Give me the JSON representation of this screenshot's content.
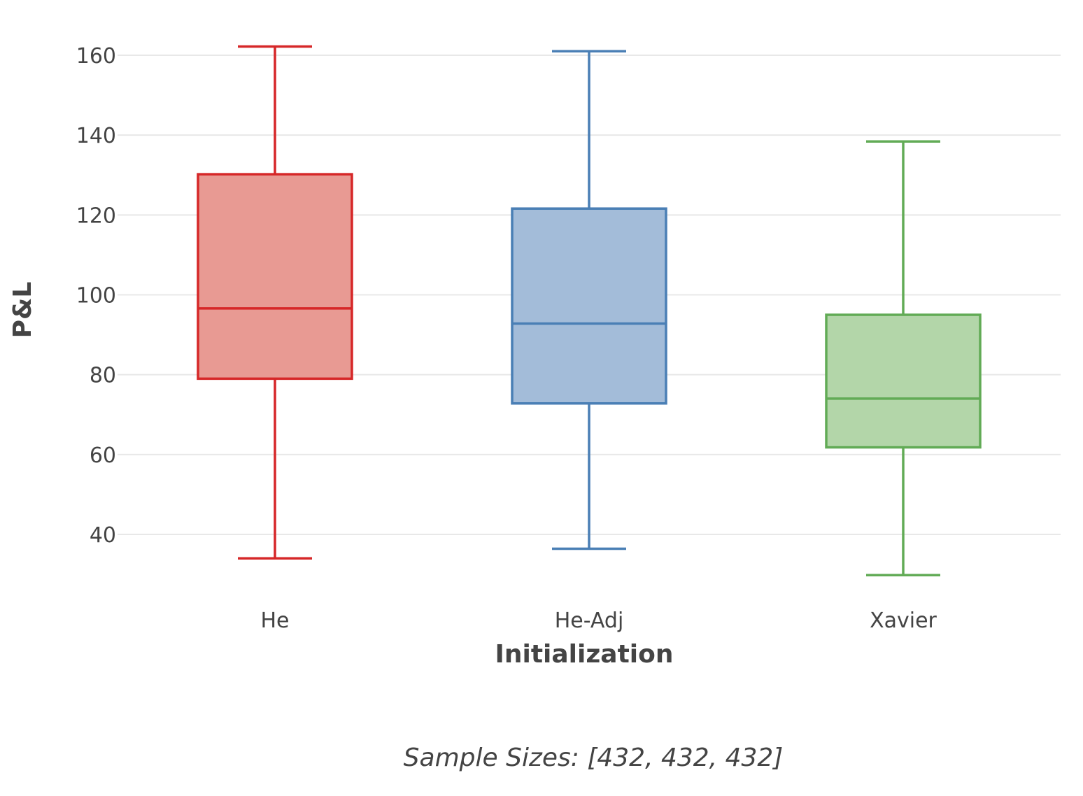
{
  "chart_data": {
    "type": "box",
    "title": "",
    "xlabel": "Initialization",
    "ylabel": "P&L",
    "yticks": [
      40,
      60,
      80,
      100,
      120,
      140,
      160
    ],
    "ylim": [
      24,
      166
    ],
    "grid": true,
    "legend": "none",
    "categories": [
      "He",
      "He-Adj",
      "Xavier"
    ],
    "series": [
      {
        "category": "He",
        "min": 34,
        "q1": 79,
        "median": 96.6,
        "q3": 130.2,
        "max": 162.2,
        "color": "#d62728",
        "fill": "#e89a93"
      },
      {
        "category": "He-Adj",
        "min": 36.4,
        "q1": 72.8,
        "median": 92.8,
        "q3": 121.6,
        "max": 161,
        "color": "#4a7fb5",
        "fill": "#a3bcd9"
      },
      {
        "category": "Xavier",
        "min": 29.8,
        "q1": 61.8,
        "median": 74,
        "q3": 95,
        "max": 138.4,
        "color": "#62ab56",
        "fill": "#b3d6a9"
      }
    ],
    "annotation": "Sample Sizes: [432, 432, 432]"
  }
}
